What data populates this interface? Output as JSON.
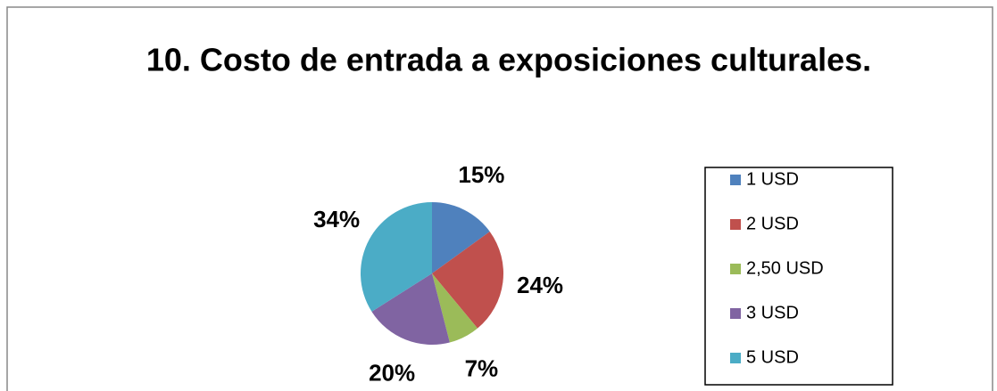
{
  "chart_data": {
    "type": "pie",
    "title": "10. Costo de entrada a exposiciones culturales.",
    "categories": [
      "1 USD",
      "2 USD",
      "2,50 USD",
      "3 USD",
      "5 USD"
    ],
    "values": [
      15,
      24,
      7,
      20,
      34
    ],
    "value_labels": [
      "15%",
      "24%",
      "7%",
      "20%",
      "34%"
    ],
    "colors": [
      "#4f81bd",
      "#c0504d",
      "#9bbb59",
      "#8064a2",
      "#4bacc6"
    ],
    "legend": "right"
  }
}
